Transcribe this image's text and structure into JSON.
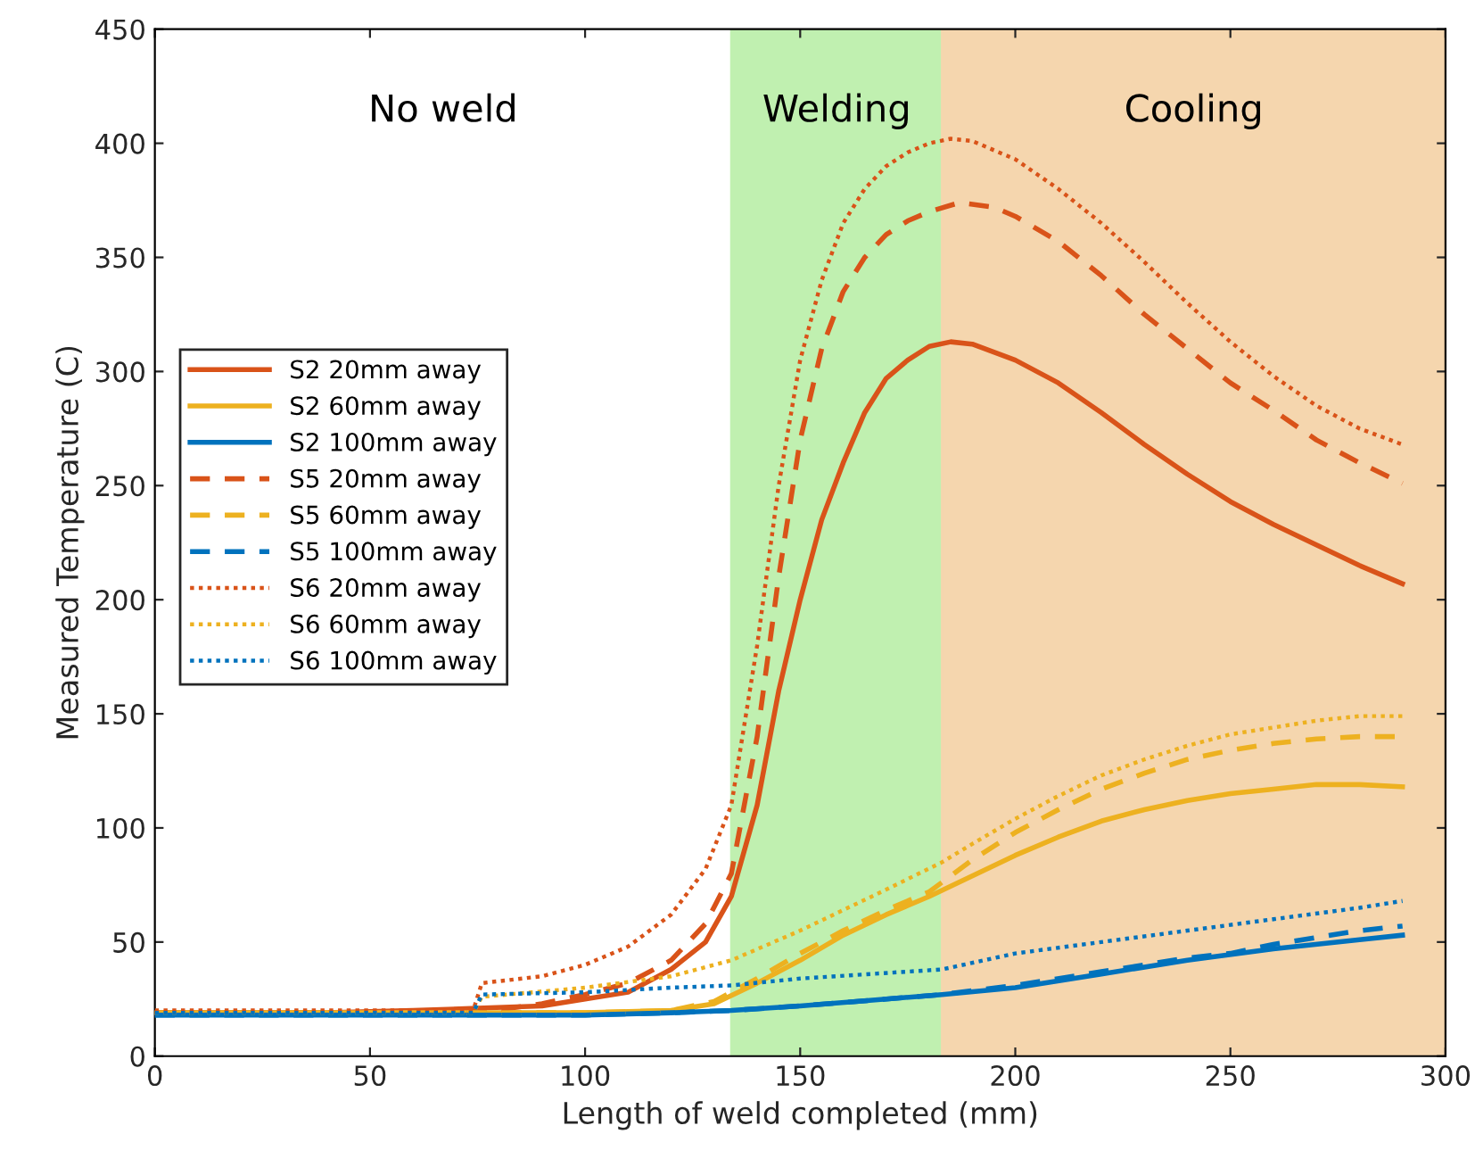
{
  "chart_data": {
    "type": "line",
    "xlabel": "Length of weld completed (mm)",
    "ylabel": "Measured Temperature (C)",
    "xlim": [
      0,
      300
    ],
    "ylim": [
      0,
      450
    ],
    "xticks": [
      0,
      50,
      100,
      150,
      200,
      250,
      300
    ],
    "yticks": [
      0,
      50,
      100,
      150,
      200,
      250,
      300,
      350,
      400,
      450
    ],
    "grid": false,
    "legend": "left",
    "marker": "none",
    "annotations": [
      "No weld"
    ],
    "bands": [
      {
        "axis": "x",
        "from": 134,
        "to": 183,
        "label": "Welding",
        "color": "#c0f0b0"
      },
      {
        "axis": "x",
        "from": 183,
        "to": 300,
        "label": "Cooling",
        "color": "#f5d6ae"
      }
    ],
    "series": [
      {
        "name": "S2 20mm away",
        "color": "#d95319",
        "line_style": "solid",
        "x": [
          0,
          20,
          40,
          60,
          75,
          90,
          100,
          110,
          120,
          128,
          134,
          140,
          145,
          150,
          155,
          160,
          165,
          170,
          175,
          180,
          185,
          190,
          200,
          210,
          220,
          230,
          240,
          250,
          260,
          270,
          280,
          290
        ],
        "values": [
          19,
          19,
          19,
          20,
          21,
          22,
          25,
          28,
          38,
          50,
          70,
          110,
          160,
          200,
          235,
          260,
          282,
          297,
          305,
          311,
          313,
          312,
          305,
          295,
          282,
          268,
          255,
          243,
          233,
          224,
          215,
          207
        ]
      },
      {
        "name": "S2 60mm away",
        "color": "#edb120",
        "line_style": "solid",
        "x": [
          0,
          20,
          40,
          60,
          80,
          100,
          120,
          130,
          140,
          150,
          160,
          170,
          180,
          190,
          200,
          210,
          220,
          230,
          240,
          250,
          260,
          270,
          280,
          290
        ],
        "values": [
          19,
          19,
          19,
          19,
          19,
          19,
          20,
          23,
          32,
          42,
          53,
          62,
          70,
          79,
          88,
          96,
          103,
          108,
          112,
          115,
          117,
          119,
          119,
          118
        ]
      },
      {
        "name": "S2 100mm away",
        "color": "#0072bd",
        "line_style": "solid",
        "x": [
          0,
          20,
          40,
          60,
          80,
          100,
          120,
          134,
          150,
          170,
          183,
          200,
          220,
          240,
          260,
          280,
          290
        ],
        "values": [
          18,
          18,
          18,
          18,
          18,
          18,
          19,
          20,
          22,
          25,
          27,
          30,
          36,
          42,
          47,
          51,
          53
        ]
      },
      {
        "name": "S5 20mm away",
        "color": "#d95319",
        "line_style": "dashed",
        "x": [
          0,
          20,
          40,
          60,
          75,
          90,
          100,
          110,
          120,
          128,
          134,
          140,
          145,
          150,
          155,
          160,
          165,
          170,
          175,
          180,
          187,
          195,
          200,
          210,
          220,
          230,
          240,
          250,
          260,
          270,
          280,
          290
        ],
        "values": [
          19,
          19,
          19,
          19,
          19,
          23,
          27,
          32,
          42,
          58,
          80,
          140,
          210,
          270,
          310,
          335,
          350,
          360,
          366,
          370,
          374,
          372,
          368,
          357,
          342,
          325,
          310,
          295,
          283,
          270,
          260,
          251
        ]
      },
      {
        "name": "S5 60mm away",
        "color": "#edb120",
        "line_style": "dashed",
        "x": [
          0,
          20,
          40,
          60,
          80,
          100,
          120,
          130,
          140,
          150,
          160,
          170,
          180,
          190,
          200,
          210,
          220,
          230,
          240,
          250,
          260,
          270,
          280,
          290
        ],
        "values": [
          19,
          19,
          19,
          19,
          19,
          19,
          20,
          24,
          34,
          45,
          55,
          64,
          72,
          86,
          98,
          108,
          117,
          124,
          130,
          134,
          137,
          139,
          140,
          140
        ]
      },
      {
        "name": "S5 100mm away",
        "color": "#0072bd",
        "line_style": "dashed",
        "x": [
          0,
          20,
          40,
          60,
          80,
          100,
          120,
          134,
          150,
          170,
          183,
          200,
          220,
          240,
          250,
          260,
          270,
          280,
          290
        ],
        "values": [
          18,
          18,
          18,
          18,
          18,
          18,
          19,
          20,
          22,
          25,
          27,
          31,
          37,
          43,
          45,
          49,
          52,
          55,
          57
        ]
      },
      {
        "name": "S6 20mm away",
        "color": "#d95319",
        "line_style": "dotted",
        "x": [
          0,
          20,
          40,
          60,
          74,
          76,
          90,
          100,
          110,
          120,
          128,
          134,
          140,
          145,
          150,
          155,
          160,
          165,
          170,
          175,
          180,
          185,
          190,
          200,
          210,
          220,
          230,
          240,
          250,
          260,
          270,
          280,
          290
        ],
        "values": [
          20,
          20,
          20,
          20,
          20,
          32,
          35,
          40,
          48,
          62,
          82,
          110,
          180,
          250,
          305,
          340,
          365,
          380,
          390,
          396,
          400,
          402,
          401,
          393,
          380,
          365,
          348,
          330,
          313,
          298,
          285,
          275,
          268
        ]
      },
      {
        "name": "S6 60mm away",
        "color": "#edb120",
        "line_style": "dotted",
        "x": [
          0,
          20,
          40,
          60,
          74,
          76,
          100,
          120,
          134,
          150,
          160,
          170,
          183,
          190,
          200,
          210,
          220,
          230,
          240,
          250,
          260,
          270,
          280,
          290
        ],
        "values": [
          19,
          19,
          19,
          19,
          19,
          26,
          30,
          35,
          42,
          55,
          64,
          73,
          85,
          93,
          104,
          114,
          123,
          130,
          136,
          141,
          144,
          147,
          149,
          149
        ]
      },
      {
        "name": "S6 100mm away",
        "color": "#0072bd",
        "line_style": "dotted",
        "x": [
          0,
          20,
          40,
          60,
          74,
          76,
          100,
          120,
          134,
          150,
          183,
          200,
          220,
          240,
          260,
          280,
          290
        ],
        "values": [
          19,
          19,
          19,
          19,
          19,
          27,
          28,
          30,
          31,
          34,
          38,
          45,
          50,
          55,
          60,
          65,
          68
        ]
      }
    ]
  }
}
